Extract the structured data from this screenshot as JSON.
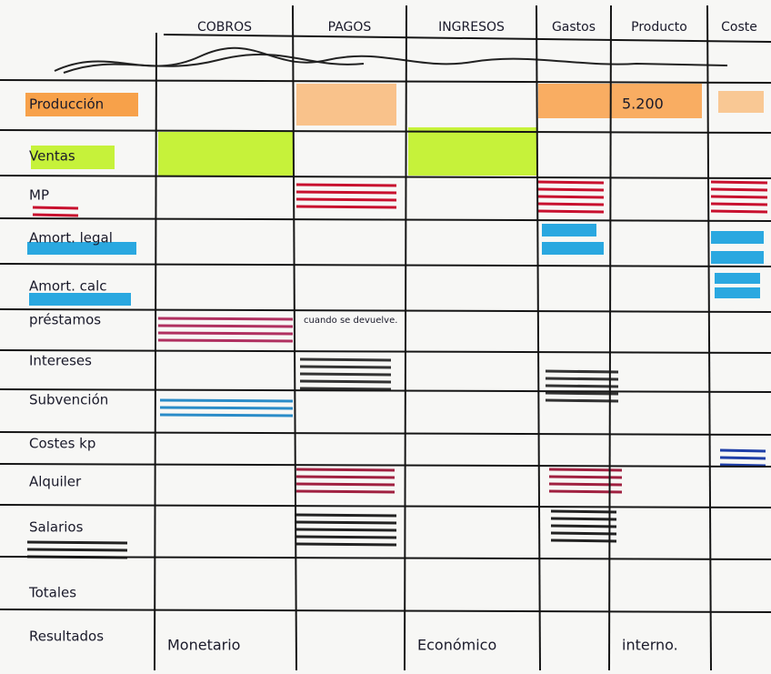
{
  "table": {
    "columns": [
      "COBROS",
      "PAGOS",
      "INGRESOS",
      "Gastos",
      "Producto",
      "Coste"
    ],
    "rows": [
      {
        "label": "Producción",
        "cells": [
          null,
          null,
          null,
          null,
          "5.200",
          null
        ]
      },
      {
        "label": "Ventas",
        "cells": [
          null,
          null,
          null,
          null,
          null,
          null
        ]
      },
      {
        "label": "MP",
        "cells": [
          null,
          null,
          null,
          null,
          null,
          null
        ]
      },
      {
        "label": "Amort. legal",
        "cells": [
          null,
          null,
          null,
          null,
          null,
          null
        ]
      },
      {
        "label": "Amort. calc",
        "cells": [
          null,
          null,
          null,
          null,
          null,
          null
        ]
      },
      {
        "label": "préstamos",
        "cells": [
          null,
          "cuando se devuelve.",
          null,
          null,
          null,
          null
        ]
      },
      {
        "label": "Intereses",
        "cells": [
          null,
          null,
          null,
          null,
          null,
          null
        ]
      },
      {
        "label": "Subvención",
        "cells": [
          null,
          null,
          null,
          null,
          null,
          null
        ]
      },
      {
        "label": "Costes kp",
        "cells": [
          null,
          null,
          null,
          null,
          null,
          null
        ]
      },
      {
        "label": "Alquiler",
        "cells": [
          null,
          null,
          null,
          null,
          null,
          null
        ]
      },
      {
        "label": "Salarios",
        "cells": [
          null,
          null,
          null,
          null,
          null,
          null
        ]
      },
      {
        "label": "Totales",
        "cells": [
          null,
          null,
          null,
          null,
          null,
          null
        ]
      },
      {
        "label": "Resultados",
        "cells": [
          "Monetario",
          null,
          "Económico",
          null,
          "interno.",
          null
        ]
      }
    ]
  }
}
